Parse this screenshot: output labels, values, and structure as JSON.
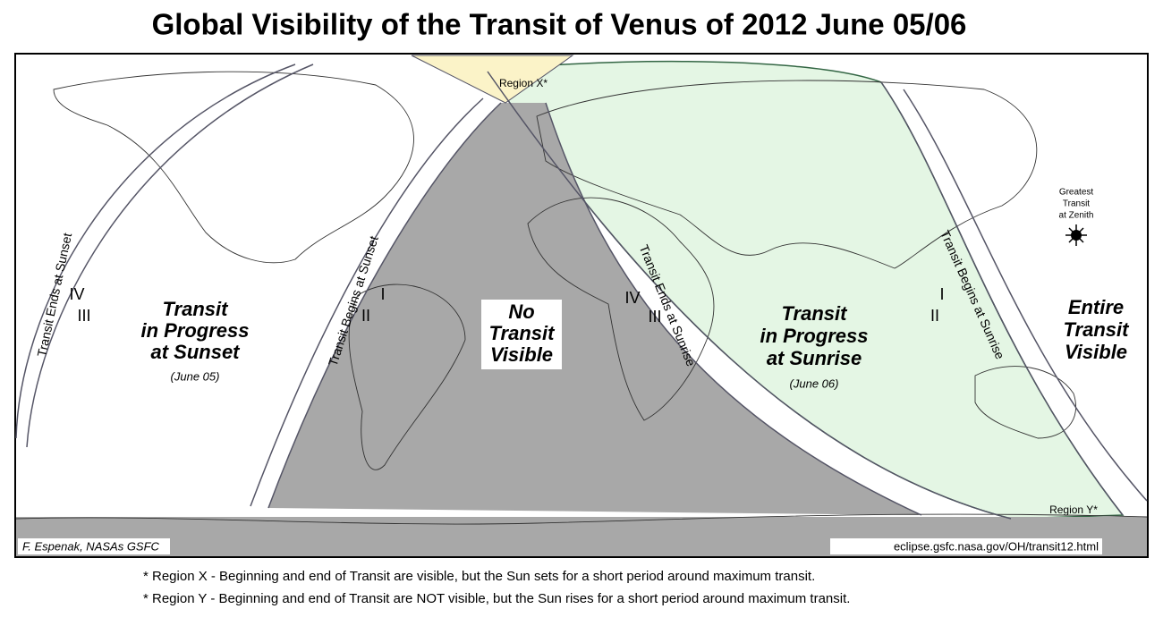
{
  "title": "Global Visibility of the Transit of Venus of 2012 June 05/06",
  "map": {
    "region_x": "Region X*",
    "region_y": "Region Y*",
    "zenith": [
      "Greatest",
      "Transit",
      "at Zenith"
    ],
    "sunset": {
      "ends": "Transit Ends at Sunset",
      "contacts_ends": [
        "IV",
        "III"
      ],
      "begins": "Transit Begins at Sunset",
      "contacts_begins": [
        "I",
        "II"
      ],
      "progress": [
        "Transit",
        "in Progress",
        "at Sunset"
      ],
      "date": "(June 05)"
    },
    "no_transit": [
      "No",
      "Transit",
      "Visible"
    ],
    "sunrise": {
      "ends": "Transit Ends at Sunrise",
      "contacts_ends": [
        "IV",
        "III"
      ],
      "begins": "Transit Begins at Sunrise",
      "contacts_begins": [
        "I",
        "II"
      ],
      "progress": [
        "Transit",
        "in Progress",
        "at Sunrise"
      ],
      "date": "(June 06)"
    },
    "entire": [
      "Entire",
      "Transit",
      "Visible"
    ],
    "credit": "F. Espenak, NASAs GSFC",
    "url": "eclipse.gsfc.nasa.gov/OH/transit12.html"
  },
  "footnotes": [
    "* Region X - Beginning and end of Transit are visible, but the Sun sets for a short period around maximum transit.",
    "* Region Y - Beginning and end of Transit are NOT visible, but the Sun rises for a short period around maximum transit."
  ]
}
